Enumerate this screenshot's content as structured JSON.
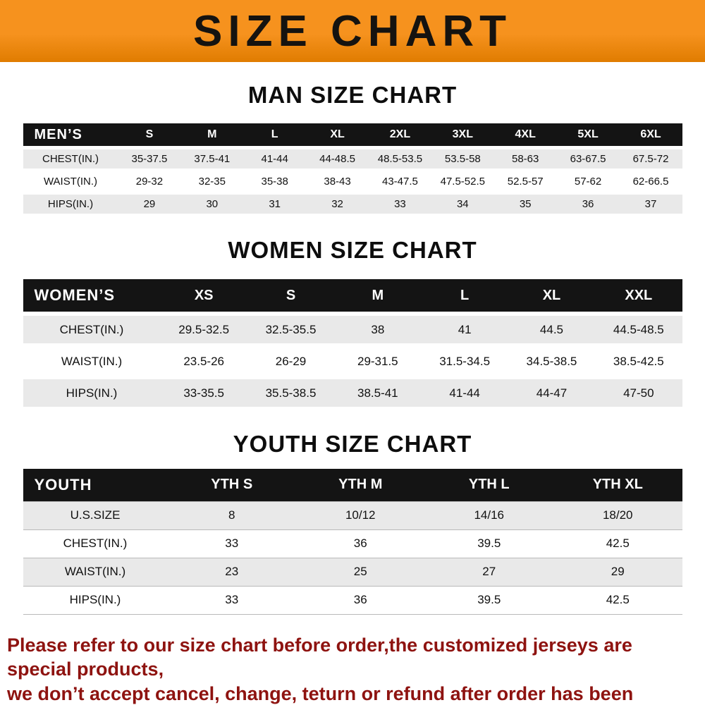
{
  "banner": {
    "title": "SIZE CHART"
  },
  "colors": {
    "banner_orange": "#f6921e",
    "banner_orange_dark": "#e07c00",
    "header_black": "#141414",
    "row_shade": "#e9e9e9",
    "footer_red": "#8e1310"
  },
  "sections": [
    {
      "css": "men",
      "heading": "MAN SIZE CHART",
      "table": {
        "header_label": "MEN’S",
        "columns": [
          "S",
          "M",
          "L",
          "XL",
          "2XL",
          "3XL",
          "4XL",
          "5XL",
          "6XL"
        ],
        "rows": [
          {
            "label": "CHEST(IN.)",
            "values": [
              "35-37.5",
              "37.5-41",
              "41-44",
              "44-48.5",
              "48.5-53.5",
              "53.5-58",
              "58-63",
              "63-67.5",
              "67.5-72"
            ]
          },
          {
            "label": "WAIST(IN.)",
            "values": [
              "29-32",
              "32-35",
              "35-38",
              "38-43",
              "43-47.5",
              "47.5-52.5",
              "52.5-57",
              "57-62",
              "62-66.5"
            ]
          },
          {
            "label": "HIPS(IN.)",
            "values": [
              "29",
              "30",
              "31",
              "32",
              "33",
              "34",
              "35",
              "36",
              "37"
            ]
          }
        ]
      }
    },
    {
      "css": "women",
      "heading": "WOMEN SIZE CHART",
      "table": {
        "header_label": "WOMEN’S",
        "columns": [
          "XS",
          "S",
          "M",
          "L",
          "XL",
          "XXL"
        ],
        "rows": [
          {
            "label": "CHEST(IN.)",
            "values": [
              "29.5-32.5",
              "32.5-35.5",
              "38",
              "41",
              "44.5",
              "44.5-48.5"
            ]
          },
          {
            "label": "WAIST(IN.)",
            "values": [
              "23.5-26",
              "26-29",
              "29-31.5",
              "31.5-34.5",
              "34.5-38.5",
              "38.5-42.5"
            ]
          },
          {
            "label": "HIPS(IN.)",
            "values": [
              "33-35.5",
              "35.5-38.5",
              "38.5-41",
              "41-44",
              "44-47",
              "47-50"
            ]
          }
        ]
      }
    },
    {
      "css": "youth",
      "heading": "YOUTH SIZE CHART",
      "table": {
        "header_label": "YOUTH",
        "columns": [
          "YTH S",
          "YTH M",
          "YTH L",
          "YTH XL"
        ],
        "rows": [
          {
            "label": "U.S.SIZE",
            "values": [
              "8",
              "10/12",
              "14/16",
              "18/20"
            ]
          },
          {
            "label": "CHEST(IN.)",
            "values": [
              "33",
              "36",
              "39.5",
              "42.5"
            ]
          },
          {
            "label": "WAIST(IN.)",
            "values": [
              "23",
              "25",
              "27",
              "29"
            ]
          },
          {
            "label": "HIPS(IN.)",
            "values": [
              "33",
              "36",
              "39.5",
              "42.5"
            ]
          }
        ]
      }
    }
  ],
  "footer": {
    "line1": "Please refer to our size chart before order,the customized jerseys are special products,",
    "line2": "we don’t accept cancel, change, teturn or refund after order has been placed!"
  }
}
